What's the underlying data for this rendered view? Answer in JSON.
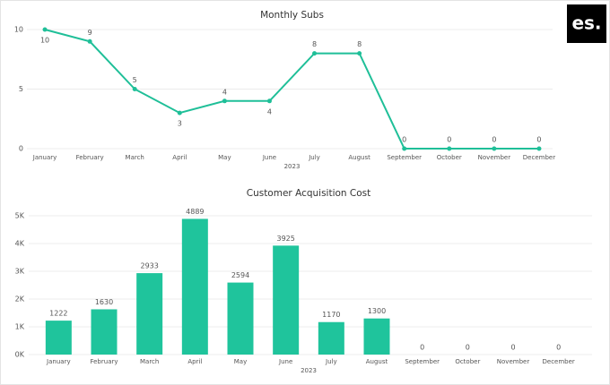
{
  "logo": "es.",
  "chart_data": [
    {
      "type": "line",
      "title": "Monthly Subs",
      "x_label": "2023",
      "categories": [
        "January",
        "February",
        "March",
        "April",
        "May",
        "June",
        "July",
        "August",
        "September",
        "October",
        "November",
        "December"
      ],
      "values": [
        10,
        9,
        5,
        3,
        4,
        4,
        8,
        8,
        0,
        0,
        0,
        0
      ],
      "color": "#1fbf98",
      "ylim": [
        0,
        10
      ],
      "yticks": [
        0,
        5,
        10
      ],
      "grid": true
    },
    {
      "type": "bar",
      "title": "Customer Acquisition Cost",
      "x_label": "2023",
      "categories": [
        "January",
        "February",
        "March",
        "April",
        "May",
        "June",
        "July",
        "August",
        "September",
        "October",
        "November",
        "December"
      ],
      "values": [
        1222,
        1630,
        2933,
        4889,
        2594,
        3925,
        1170,
        1300,
        0,
        0,
        0,
        0
      ],
      "color": "#1fc49c",
      "ylim": [
        0,
        5000
      ],
      "yticks": [
        {
          "value": 0,
          "label": "0K"
        },
        {
          "value": 1000,
          "label": "1K"
        },
        {
          "value": 2000,
          "label": "2K"
        },
        {
          "value": 3000,
          "label": "3K"
        },
        {
          "value": 4000,
          "label": "4K"
        },
        {
          "value": 5000,
          "label": "5K"
        }
      ],
      "grid": true
    }
  ]
}
